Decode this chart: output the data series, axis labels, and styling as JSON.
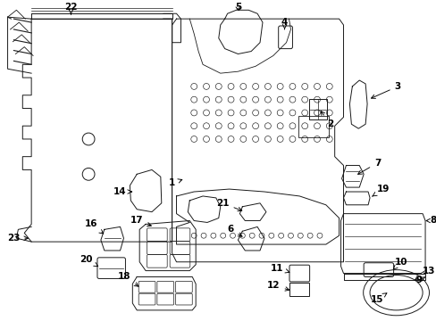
{
  "bg_color": "#ffffff",
  "line_color": "#1a1a1a",
  "fig_width": 4.89,
  "fig_height": 3.6,
  "dpi": 100,
  "lw": 0.7,
  "label_fontsize": 7.5
}
